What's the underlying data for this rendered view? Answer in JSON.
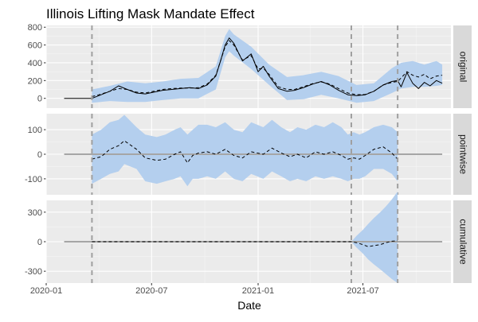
{
  "chart_data": {
    "type": "line",
    "title": "Illinois Lifting Mask Mandate Effect",
    "xlabel": "Date",
    "x_ticks": [
      "2020-01",
      "2020-07",
      "2021-01",
      "2021-07"
    ],
    "xlim": [
      "2020-01-01",
      "2021-11-30"
    ],
    "vlines": [
      "2020-03-20",
      "2021-06-11",
      "2021-08-30"
    ],
    "grid": true,
    "colors": {
      "panel_bg": "#ebebeb",
      "strip_bg": "#d9d9d9",
      "band": "#b4cfee",
      "line": "#000000",
      "zero_line": "#a6a6a6",
      "vline": "#a0a0a0"
    },
    "panels": [
      {
        "label": "original",
        "ylim": [
          -110,
          820
        ],
        "yticks": [
          0,
          200,
          400,
          600,
          800
        ],
        "series": [
          {
            "style": "solid",
            "x": [
              "2020-02-01",
              "2020-03-20",
              "2020-04-01",
              "2020-04-20",
              "2020-05-05",
              "2020-05-20",
              "2020-06-05",
              "2020-06-20",
              "2020-07-05",
              "2020-07-20",
              "2020-08-05",
              "2020-08-20",
              "2020-09-05",
              "2020-09-20",
              "2020-10-05",
              "2020-10-20",
              "2020-10-28",
              "2020-11-05",
              "2020-11-12",
              "2020-11-20",
              "2020-12-05",
              "2020-12-20",
              "2021-01-01",
              "2021-01-10",
              "2021-01-20",
              "2021-02-05",
              "2021-02-20",
              "2021-03-05",
              "2021-03-20",
              "2021-04-05",
              "2021-04-20",
              "2021-05-05",
              "2021-05-20",
              "2021-06-05",
              "2021-06-20",
              "2021-07-05",
              "2021-07-20",
              "2021-08-05",
              "2021-08-20",
              "2021-08-30",
              "2021-09-05",
              "2021-09-15",
              "2021-09-25",
              "2021-10-05",
              "2021-10-15",
              "2021-10-25",
              "2021-11-05",
              "2021-11-15"
            ],
            "y": [
              0,
              0,
              30,
              80,
              140,
              100,
              60,
              50,
              70,
              90,
              100,
              110,
              120,
              110,
              150,
              250,
              420,
              600,
              680,
              620,
              420,
              500,
              300,
              360,
              250,
              110,
              80,
              90,
              120,
              160,
              190,
              150,
              90,
              40,
              30,
              40,
              80,
              150,
              190,
              200,
              130,
              290,
              170,
              110,
              180,
              140,
              200,
              170
            ]
          },
          {
            "style": "dashed",
            "x": [
              "2020-03-20",
              "2020-04-01",
              "2020-04-20",
              "2020-05-05",
              "2020-05-20",
              "2020-06-05",
              "2020-06-20",
              "2020-07-05",
              "2020-07-20",
              "2020-08-05",
              "2020-08-20",
              "2020-09-05",
              "2020-09-20",
              "2020-10-05",
              "2020-10-20",
              "2020-10-28",
              "2020-11-05",
              "2020-11-12",
              "2020-11-20",
              "2020-12-05",
              "2020-12-20",
              "2021-01-01",
              "2021-01-10",
              "2021-01-20",
              "2021-02-05",
              "2021-02-20",
              "2021-03-05",
              "2021-03-20",
              "2021-04-05",
              "2021-04-20",
              "2021-05-05",
              "2021-05-20",
              "2021-06-05",
              "2021-06-20",
              "2021-07-05",
              "2021-07-20",
              "2021-08-05",
              "2021-08-20",
              "2021-08-30",
              "2021-09-05",
              "2021-09-15",
              "2021-09-25",
              "2021-10-05",
              "2021-10-15",
              "2021-10-25",
              "2021-11-05",
              "2021-11-15"
            ],
            "y": [
              20,
              40,
              80,
              110,
              100,
              70,
              60,
              80,
              100,
              110,
              115,
              115,
              120,
              160,
              260,
              420,
              580,
              650,
              600,
              430,
              480,
              330,
              340,
              270,
              130,
              100,
              100,
              130,
              165,
              185,
              160,
              110,
              60,
              40,
              45,
              80,
              150,
              180,
              190,
              230,
              300,
              260,
              240,
              270,
              220,
              250,
              260
            ]
          }
        ],
        "band": {
          "x": [
            "2020-03-20",
            "2020-04-20",
            "2020-05-20",
            "2020-06-20",
            "2020-07-20",
            "2020-08-20",
            "2020-09-20",
            "2020-10-20",
            "2020-11-05",
            "2020-11-12",
            "2020-11-20",
            "2020-12-20",
            "2021-01-20",
            "2021-02-20",
            "2021-03-20",
            "2021-04-20",
            "2021-05-20",
            "2021-06-20",
            "2021-07-20",
            "2021-08-20",
            "2021-09-05",
            "2021-09-25",
            "2021-10-15",
            "2021-11-05",
            "2021-11-15"
          ],
          "lower": [
            -50,
            -30,
            -40,
            -40,
            -20,
            0,
            0,
            100,
            460,
            530,
            480,
            330,
            150,
            -20,
            -10,
            40,
            0,
            -50,
            -30,
            60,
            110,
            130,
            130,
            140,
            150
          ],
          "upper": [
            100,
            140,
            190,
            170,
            190,
            220,
            230,
            360,
            700,
            780,
            720,
            580,
            380,
            240,
            260,
            300,
            250,
            150,
            170,
            340,
            400,
            420,
            380,
            420,
            380
          ]
        }
      },
      {
        "label": "pointwise",
        "ylim": [
          -165,
          165
        ],
        "yticks": [
          -100,
          0,
          100
        ],
        "zero_line": 0,
        "series": [
          {
            "style": "dashed",
            "x": [
              "2020-03-20",
              "2020-04-05",
              "2020-04-20",
              "2020-05-05",
              "2020-05-15",
              "2020-06-05",
              "2020-06-20",
              "2020-07-10",
              "2020-07-25",
              "2020-08-10",
              "2020-08-20",
              "2020-09-01",
              "2020-09-10",
              "2020-09-20",
              "2020-10-05",
              "2020-10-20",
              "2020-11-05",
              "2020-11-20",
              "2020-12-05",
              "2020-12-20",
              "2021-01-10",
              "2021-01-25",
              "2021-02-10",
              "2021-02-25",
              "2021-03-10",
              "2021-03-25",
              "2021-04-10",
              "2021-04-25",
              "2021-05-10",
              "2021-05-25",
              "2021-06-05",
              "2021-06-15",
              "2021-06-25",
              "2021-07-05",
              "2021-07-20",
              "2021-08-05",
              "2021-08-20",
              "2021-08-30"
            ],
            "y": [
              -20,
              -10,
              20,
              35,
              55,
              20,
              -15,
              -25,
              -20,
              0,
              10,
              -35,
              -5,
              5,
              10,
              0,
              20,
              -5,
              -15,
              10,
              0,
              25,
              5,
              -10,
              0,
              -15,
              10,
              0,
              10,
              -5,
              -20,
              -15,
              -20,
              -5,
              20,
              30,
              5,
              -20
            ]
          }
        ],
        "band": {
          "x": [
            "2020-03-20",
            "2020-04-05",
            "2020-04-20",
            "2020-05-05",
            "2020-05-15",
            "2020-06-05",
            "2020-06-20",
            "2020-07-10",
            "2020-07-25",
            "2020-08-10",
            "2020-08-20",
            "2020-09-01",
            "2020-09-10",
            "2020-09-20",
            "2020-10-05",
            "2020-10-20",
            "2020-11-05",
            "2020-11-20",
            "2020-12-05",
            "2020-12-20",
            "2021-01-10",
            "2021-01-25",
            "2021-02-10",
            "2021-02-25",
            "2021-03-10",
            "2021-03-25",
            "2021-04-10",
            "2021-04-25",
            "2021-05-10",
            "2021-05-25",
            "2021-06-05",
            "2021-06-15",
            "2021-06-25",
            "2021-07-05",
            "2021-07-20",
            "2021-08-05",
            "2021-08-20",
            "2021-08-30"
          ],
          "lower": [
            -120,
            -100,
            -80,
            -70,
            -40,
            -60,
            -110,
            -120,
            -110,
            -100,
            -90,
            -130,
            -100,
            -100,
            -90,
            -100,
            -70,
            -100,
            -110,
            -80,
            -100,
            -70,
            -90,
            -110,
            -100,
            -110,
            -90,
            -100,
            -90,
            -100,
            -110,
            -100,
            -100,
            -90,
            -60,
            -60,
            -80,
            -110
          ],
          "upper": [
            80,
            100,
            130,
            140,
            160,
            110,
            80,
            70,
            80,
            100,
            110,
            80,
            100,
            120,
            120,
            110,
            130,
            100,
            90,
            130,
            110,
            140,
            110,
            90,
            110,
            100,
            120,
            110,
            130,
            110,
            80,
            90,
            80,
            90,
            110,
            120,
            110,
            90
          ]
        }
      },
      {
        "label": "cumulative",
        "ylim": [
          -420,
          420
        ],
        "yticks": [
          -300,
          0,
          300
        ],
        "zero_line": 0,
        "series": [
          {
            "style": "dashed",
            "x": [
              "2020-03-20",
              "2021-06-11",
              "2021-06-20",
              "2021-07-01",
              "2021-07-10",
              "2021-07-20",
              "2021-07-31",
              "2021-08-10",
              "2021-08-20",
              "2021-08-30"
            ],
            "y": [
              0,
              0,
              -10,
              -30,
              -50,
              -40,
              -30,
              -10,
              5,
              10
            ]
          }
        ],
        "band": {
          "x": [
            "2021-06-11",
            "2021-06-20",
            "2021-07-01",
            "2021-07-10",
            "2021-07-20",
            "2021-07-31",
            "2021-08-10",
            "2021-08-20",
            "2021-08-30"
          ],
          "lower": [
            0,
            -60,
            -120,
            -180,
            -230,
            -280,
            -330,
            -380,
            -420
          ],
          "upper": [
            0,
            60,
            120,
            180,
            240,
            300,
            360,
            430,
            510
          ]
        }
      }
    ]
  }
}
